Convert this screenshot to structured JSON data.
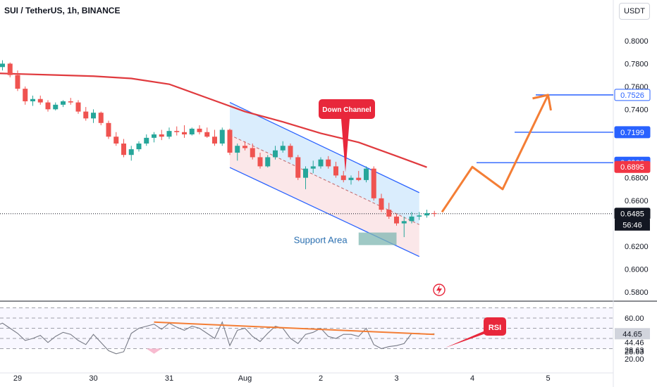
{
  "title": "SUI / TetherUS, 1h, BINANCE",
  "currency_button": "USDT",
  "colors": {
    "background": "#ffffff",
    "up": "#26a69a",
    "down": "#ef5350",
    "ma": "#e03a3e",
    "channel_line": "#2962ff",
    "arrow": "#f47e35",
    "rsi_line": "#787b86",
    "rsi_trend": "#f47e35",
    "callout": "#e8273b",
    "support_fill": "#7fb7b1"
  },
  "annotations": {
    "down_channel": "Down Channel",
    "support_area": "Support Area",
    "rsi": "RSI"
  },
  "chart_data": [
    {
      "type": "candlestick",
      "title": "SUI / TetherUS, 1h, BINANCE",
      "x_ticks": [
        "29",
        "30",
        "31",
        "Aug",
        "2",
        "3",
        "4",
        "5"
      ],
      "y_ticks": [
        "0.8000",
        "0.7800",
        "0.7600",
        "0.7400",
        "0.6800",
        "0.6600",
        "0.6200",
        "0.6000",
        "0.5800"
      ],
      "ylim": [
        0.5756,
        0.8219
      ],
      "price_labels": [
        {
          "text": "0.7526",
          "value": 0.7526,
          "style": "blue"
        },
        {
          "text": "0.7199",
          "value": 0.7199,
          "style": "blue"
        },
        {
          "text": "0.6932",
          "value": 0.6932,
          "style": "blue"
        },
        {
          "text": "0.6895",
          "value": 0.6895,
          "style": "red"
        },
        {
          "text": "0.6485",
          "value": 0.6485,
          "style": "dark"
        }
      ],
      "countdown": "56:46",
      "horizontal_levels": [
        0.7526,
        0.7199,
        0.6932
      ],
      "current_price": 0.6485,
      "series": [
        {
          "name": "",
          "kind": "moving-average",
          "x": [
            -1.0,
            -0.5,
            0.0,
            0.5,
            1.0,
            1.5,
            2.0,
            2.5,
            3.0,
            3.5,
            4.0,
            4.5,
            5.0,
            5.4
          ],
          "y": [
            0.773,
            0.772,
            0.771,
            0.77,
            0.769,
            0.767,
            0.762,
            0.75,
            0.738,
            0.729,
            0.719,
            0.711,
            0.699,
            0.6892
          ]
        },
        {
          "name": "",
          "kind": "projection",
          "x": [
            5.6,
            6.0,
            6.4,
            7.0
          ],
          "y": [
            0.65,
            0.6895,
            0.67,
            0.7526
          ]
        }
      ],
      "channel": {
        "upper": {
          "x": [
            2.8,
            5.3
          ],
          "y": [
            0.746,
            0.667
          ]
        },
        "lower": {
          "x": [
            2.8,
            5.3
          ],
          "y": [
            0.689,
            0.611
          ]
        }
      },
      "support_zone": {
        "x": [
          4.5,
          5.0
        ],
        "y": [
          0.621,
          0.632
        ]
      },
      "candles": [
        [
          -1.0,
          0.76,
          0.762,
          0.756,
          0.758
        ],
        [
          -0.9,
          0.758,
          0.761,
          0.75,
          0.752
        ],
        [
          -0.8,
          0.752,
          0.756,
          0.746,
          0.748
        ],
        [
          -0.7,
          0.748,
          0.762,
          0.747,
          0.76
        ],
        [
          -0.6,
          0.76,
          0.78,
          0.759,
          0.778
        ],
        [
          -0.5,
          0.778,
          0.784,
          0.772,
          0.774
        ],
        [
          -0.4,
          0.774,
          0.784,
          0.771,
          0.782
        ],
        [
          -0.3,
          0.782,
          0.783,
          0.775,
          0.777
        ],
        [
          -0.2,
          0.777,
          0.783,
          0.774,
          0.78
        ],
        [
          -0.1,
          0.78,
          0.781,
          0.768,
          0.77
        ],
        [
          0.0,
          0.77,
          0.774,
          0.756,
          0.758
        ],
        [
          0.1,
          0.758,
          0.76,
          0.744,
          0.747
        ],
        [
          0.2,
          0.747,
          0.752,
          0.743,
          0.749
        ],
        [
          0.3,
          0.749,
          0.752,
          0.744,
          0.746
        ],
        [
          0.4,
          0.746,
          0.748,
          0.738,
          0.74
        ],
        [
          0.5,
          0.74,
          0.746,
          0.739,
          0.744
        ],
        [
          0.6,
          0.744,
          0.748,
          0.742,
          0.747
        ],
        [
          0.7,
          0.747,
          0.75,
          0.744,
          0.746
        ],
        [
          0.8,
          0.746,
          0.748,
          0.736,
          0.738
        ],
        [
          0.9,
          0.738,
          0.742,
          0.73,
          0.732
        ],
        [
          1.0,
          0.732,
          0.74,
          0.728,
          0.737
        ],
        [
          1.1,
          0.737,
          0.738,
          0.726,
          0.728
        ],
        [
          1.2,
          0.728,
          0.73,
          0.714,
          0.716
        ],
        [
          1.3,
          0.716,
          0.72,
          0.708,
          0.71
        ],
        [
          1.4,
          0.71,
          0.714,
          0.698,
          0.7
        ],
        [
          1.5,
          0.7,
          0.708,
          0.695,
          0.705
        ],
        [
          1.6,
          0.705,
          0.712,
          0.703,
          0.71
        ],
        [
          1.7,
          0.71,
          0.718,
          0.708,
          0.715
        ],
        [
          1.8,
          0.715,
          0.72,
          0.711,
          0.718
        ],
        [
          1.9,
          0.718,
          0.722,
          0.713,
          0.716
        ],
        [
          2.0,
          0.716,
          0.724,
          0.714,
          0.721
        ],
        [
          2.1,
          0.721,
          0.725,
          0.717,
          0.72
        ],
        [
          2.2,
          0.72,
          0.726,
          0.715,
          0.718
        ],
        [
          2.3,
          0.718,
          0.724,
          0.717,
          0.723
        ],
        [
          2.4,
          0.723,
          0.726,
          0.718,
          0.72
        ],
        [
          2.5,
          0.72,
          0.724,
          0.715,
          0.716
        ],
        [
          2.6,
          0.716,
          0.722,
          0.708,
          0.71
        ],
        [
          2.7,
          0.71,
          0.724,
          0.708,
          0.722
        ],
        [
          2.8,
          0.722,
          0.723,
          0.7,
          0.702
        ],
        [
          2.9,
          0.702,
          0.71,
          0.695,
          0.708
        ],
        [
          3.0,
          0.708,
          0.712,
          0.704,
          0.706
        ],
        [
          3.1,
          0.706,
          0.71,
          0.696,
          0.698
        ],
        [
          3.2,
          0.698,
          0.702,
          0.688,
          0.69
        ],
        [
          3.3,
          0.69,
          0.7,
          0.689,
          0.698
        ],
        [
          3.4,
          0.698,
          0.708,
          0.696,
          0.704
        ],
        [
          3.5,
          0.704,
          0.712,
          0.702,
          0.708
        ],
        [
          3.6,
          0.708,
          0.71,
          0.696,
          0.698
        ],
        [
          3.7,
          0.698,
          0.7,
          0.678,
          0.68
        ],
        [
          3.8,
          0.68,
          0.69,
          0.67,
          0.688
        ],
        [
          3.9,
          0.688,
          0.695,
          0.684,
          0.69
        ],
        [
          4.0,
          0.69,
          0.698,
          0.688,
          0.696
        ],
        [
          4.1,
          0.696,
          0.699,
          0.688,
          0.69
        ],
        [
          4.2,
          0.69,
          0.694,
          0.68,
          0.682
        ],
        [
          4.3,
          0.682,
          0.686,
          0.676,
          0.678
        ],
        [
          4.4,
          0.678,
          0.682,
          0.674,
          0.68
        ],
        [
          4.5,
          0.68,
          0.686,
          0.677,
          0.678
        ],
        [
          4.6,
          0.678,
          0.69,
          0.676,
          0.688
        ],
        [
          4.7,
          0.688,
          0.69,
          0.66,
          0.662
        ],
        [
          4.8,
          0.662,
          0.666,
          0.65,
          0.652
        ],
        [
          4.9,
          0.652,
          0.658,
          0.644,
          0.646
        ],
        [
          5.0,
          0.646,
          0.648,
          0.638,
          0.64
        ],
        [
          5.1,
          0.64,
          0.646,
          0.628,
          0.642
        ],
        [
          5.2,
          0.642,
          0.65,
          0.64,
          0.646
        ],
        [
          5.3,
          0.646,
          0.65,
          0.643,
          0.647
        ],
        [
          5.4,
          0.647,
          0.652,
          0.645,
          0.649
        ],
        [
          5.5,
          0.649,
          0.651,
          0.646,
          0.6485
        ]
      ]
    },
    {
      "type": "line",
      "title": "RSI",
      "x_ticks": [
        "29",
        "30",
        "31",
        "Aug",
        "2",
        "3",
        "4",
        "5"
      ],
      "y_ticks": [
        "60.00",
        "44.46",
        "28.63",
        "20.00"
      ],
      "ylim": [
        20,
        74
      ],
      "levels": [
        70,
        60,
        50,
        40,
        30
      ],
      "value_labels": [
        "44.65",
        "44.46",
        "28.63"
      ],
      "series": [
        {
          "name": "",
          "kind": "rsi",
          "x": [
            -1.0,
            -0.9,
            -0.8,
            -0.7,
            -0.6,
            -0.5,
            -0.4,
            -0.3,
            -0.2,
            -0.1,
            0.0,
            0.1,
            0.2,
            0.3,
            0.4,
            0.5,
            0.6,
            0.7,
            0.8,
            0.9,
            1.0,
            1.1,
            1.2,
            1.3,
            1.4,
            1.5,
            1.6,
            1.7,
            1.8,
            1.9,
            2.0,
            2.1,
            2.2,
            2.3,
            2.4,
            2.5,
            2.6,
            2.7,
            2.8,
            2.9,
            3.0,
            3.1,
            3.2,
            3.3,
            3.4,
            3.5,
            3.6,
            3.7,
            3.8,
            3.9,
            4.0,
            4.1,
            4.2,
            4.3,
            4.4,
            4.5,
            4.6,
            4.7,
            4.8,
            4.9,
            5.0,
            5.1,
            5.2,
            5.3,
            5.4,
            5.5
          ],
          "y": [
            35,
            40,
            30,
            42,
            58,
            56,
            57,
            52,
            55,
            50,
            45,
            38,
            40,
            43,
            36,
            42,
            46,
            44,
            38,
            34,
            44,
            36,
            28,
            25,
            27,
            45,
            50,
            52,
            54,
            49,
            55,
            51,
            48,
            52,
            50,
            45,
            40,
            56,
            33,
            48,
            50,
            42,
            37,
            45,
            52,
            50,
            40,
            35,
            44,
            46,
            50,
            42,
            40,
            44,
            44,
            42,
            50,
            34,
            30,
            32,
            33,
            35,
            45,
            45,
            44,
            44.65
          ]
        },
        {
          "name": "",
          "kind": "trendline",
          "x": [
            1.8,
            5.5
          ],
          "y": [
            56,
            44
          ]
        }
      ]
    }
  ]
}
